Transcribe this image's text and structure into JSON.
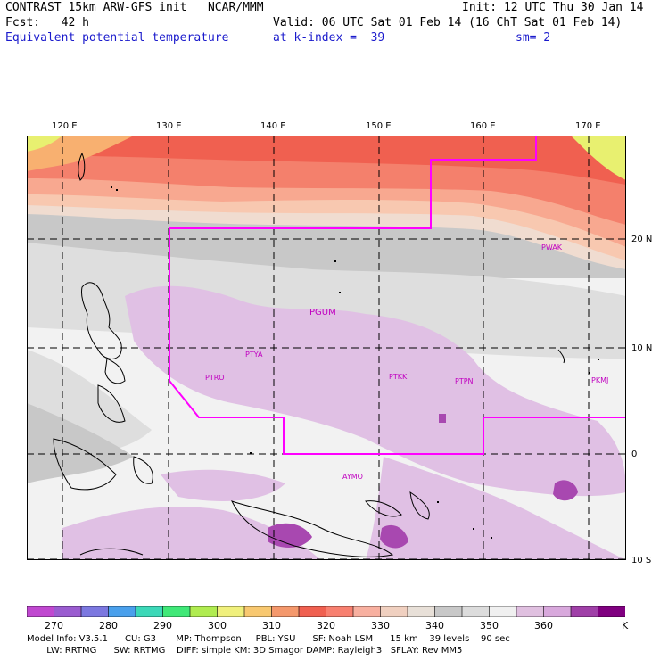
{
  "header": {
    "model": "CONTRAST 15km ARW-GFS init   NCAR/MMM",
    "fcst": "Fcst:   42 h",
    "field": "Equivalent potential temperature",
    "init": "Init: 12 UTC Thu 30 Jan 14",
    "valid": "Valid: 06 UTC Sat 01 Feb 14 (16 ChT Sat 01 Feb 14)",
    "level": "at k-index =  39",
    "smoothing": "sm= 2"
  },
  "lon_labels": [
    "120 E",
    "130 E",
    "140 E",
    "150 E",
    "160 E",
    "170 E"
  ],
  "lat_labels": [
    "20 N",
    "10 N",
    "0",
    "10 S"
  ],
  "stations": [
    "PTYA",
    "PGUM",
    "PTRO",
    "PTKK",
    "PTPN",
    "PKMJ",
    "PWAK",
    "AYMO"
  ],
  "colorbar": {
    "labels": [
      "270",
      "280",
      "290",
      "300",
      "310",
      "320",
      "330",
      "340",
      "350",
      "360"
    ],
    "unit": "K",
    "colors": [
      "#c048d0",
      "#9a5cd0",
      "#7c78e0",
      "#4aa0ec",
      "#3cd8b8",
      "#40e878",
      "#b0ec50",
      "#f0f07c",
      "#f8c870",
      "#f4986c",
      "#f06050",
      "#f88070",
      "#f8b0a0",
      "#f0d0c0",
      "#e8e0d8",
      "#c8c8c8",
      "#dcdcdc",
      "#f0f0f0",
      "#e0c0e0",
      "#d8a8dc",
      "#a040a8",
      "#800080"
    ]
  },
  "map": {
    "colors": {
      "deep_red": "#f06050",
      "red": "#f4806c",
      "salmon": "#f8a890",
      "peach": "#f8c8b0",
      "light_peach": "#f0dcd0",
      "grey": "#c8c8c8",
      "light_grey": "#dedede",
      "near_white": "#f2f2f2",
      "lilac": "#e0c0e4",
      "purple": "#a848b0",
      "yellow_green": "#e8f070",
      "orange": "#f8b070",
      "boundary": "#ff00ff"
    }
  },
  "footer": {
    "line1": "Model Info: V3.5.1      CU: G3       MP: Thompson     PBL: YSU      SF: Noah LSM      15 km    39 levels    90 sec",
    "line2": "       LW: RRTMG      SW: RRTMG    DIFF: simple KM: 3D Smagor DAMP: Rayleigh3   SFLAY: Rev MM5"
  }
}
